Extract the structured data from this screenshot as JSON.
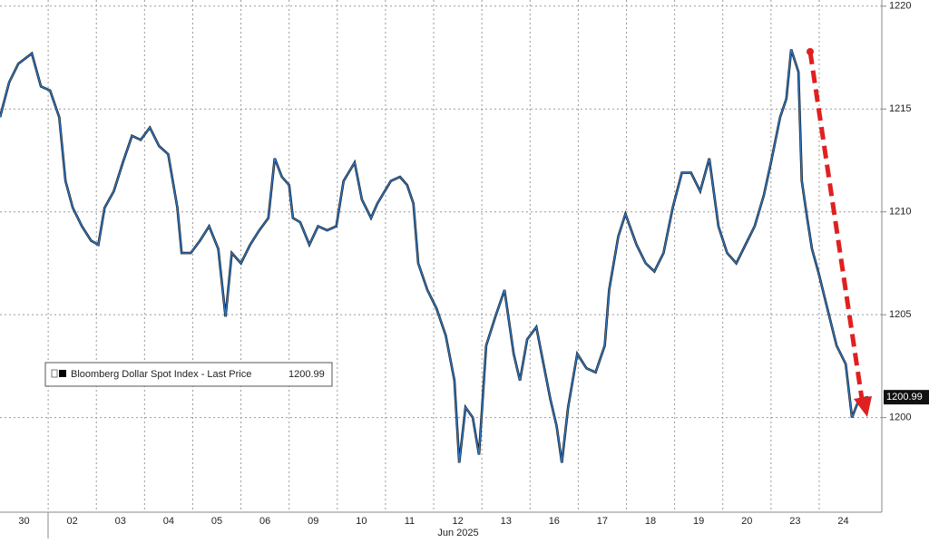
{
  "chart_data": {
    "type": "line",
    "xlabel": "Jun 2025",
    "x": [
      0,
      0.19,
      0.38,
      0.66,
      0.85,
      1.04,
      1.23,
      1.36,
      1.51,
      1.7,
      1.89,
      2.04,
      2.17,
      2.36,
      2.55,
      2.74,
      2.92,
      3.11,
      3.3,
      3.49,
      3.68,
      3.77,
      3.96,
      4.15,
      4.34,
      4.53,
      4.68,
      4.81,
      5.0,
      5.19,
      5.38,
      5.57,
      5.7,
      5.85,
      6.0,
      6.08,
      6.23,
      6.42,
      6.6,
      6.79,
      6.98,
      7.13,
      7.36,
      7.51,
      7.7,
      7.83,
      8.11,
      8.3,
      8.45,
      8.58,
      8.68,
      8.87,
      9.06,
      9.25,
      9.43,
      9.53,
      9.66,
      9.81,
      9.94,
      10.09,
      10.28,
      10.47,
      10.66,
      10.79,
      10.94,
      11.13,
      11.28,
      11.42,
      11.55,
      11.66,
      11.79,
      11.98,
      12.17,
      12.36,
      12.55,
      12.64,
      12.83,
      12.98,
      13.21,
      13.4,
      13.58,
      13.77,
      13.96,
      14.15,
      14.34,
      14.53,
      14.72,
      14.91,
      15.09,
      15.28,
      15.47,
      15.66,
      15.85,
      16.0,
      16.19,
      16.32,
      16.42,
      16.57,
      16.64,
      16.75,
      16.85,
      16.98,
      17.17,
      17.36,
      17.55,
      17.68,
      17.83,
      18.02
    ],
    "series": [
      {
        "name": "Bloomberg Dollar Spot Index - Last Price",
        "color": "#2f78c4",
        "values": [
          1214.6,
          1216.3,
          1217.2,
          1217.7,
          1216.1,
          1215.9,
          1214.6,
          1211.5,
          1210.2,
          1209.3,
          1208.6,
          1208.4,
          1210.2,
          1211.0,
          1212.4,
          1213.7,
          1213.5,
          1214.1,
          1213.2,
          1212.8,
          1210.2,
          1208.0,
          1208.0,
          1208.6,
          1209.3,
          1208.2,
          1204.9,
          1208.0,
          1207.5,
          1208.4,
          1209.1,
          1209.7,
          1212.6,
          1211.7,
          1211.3,
          1209.7,
          1209.5,
          1208.4,
          1209.3,
          1209.1,
          1209.3,
          1211.5,
          1212.4,
          1210.6,
          1209.7,
          1210.4,
          1211.5,
          1211.7,
          1211.3,
          1210.4,
          1207.5,
          1206.2,
          1205.3,
          1204.0,
          1201.8,
          1197.8,
          1200.5,
          1200.0,
          1198.2,
          1203.5,
          1204.9,
          1206.2,
          1203.1,
          1201.8,
          1203.8,
          1204.4,
          1202.6,
          1200.9,
          1199.6,
          1197.8,
          1200.5,
          1203.1,
          1202.4,
          1202.2,
          1203.5,
          1206.2,
          1208.8,
          1209.9,
          1208.4,
          1207.5,
          1207.1,
          1208.0,
          1210.2,
          1211.9,
          1211.9,
          1211.0,
          1212.6,
          1209.3,
          1208.0,
          1207.5,
          1208.4,
          1209.3,
          1210.8,
          1212.4,
          1214.6,
          1215.5,
          1217.9,
          1216.8,
          1211.5,
          1209.7,
          1208.2,
          1207.1,
          1205.3,
          1203.5,
          1202.6,
          1200.0,
          1200.9,
          1200.99
        ]
      }
    ],
    "xlim": [
      0,
      18.3
    ],
    "xticks": [
      {
        "value": 0.5,
        "label": "30"
      },
      {
        "value": 1.5,
        "label": "02"
      },
      {
        "value": 2.5,
        "label": "03"
      },
      {
        "value": 3.5,
        "label": "04"
      },
      {
        "value": 4.5,
        "label": "05"
      },
      {
        "value": 5.5,
        "label": "06"
      },
      {
        "value": 6.5,
        "label": "09"
      },
      {
        "value": 7.5,
        "label": "10"
      },
      {
        "value": 8.5,
        "label": "11"
      },
      {
        "value": 9.5,
        "label": "12"
      },
      {
        "value": 10.5,
        "label": "13"
      },
      {
        "value": 11.5,
        "label": "16"
      },
      {
        "value": 12.5,
        "label": "17"
      },
      {
        "value": 13.5,
        "label": "18"
      },
      {
        "value": 14.5,
        "label": "19"
      },
      {
        "value": 15.5,
        "label": "20"
      },
      {
        "value": 16.5,
        "label": "23"
      },
      {
        "value": 17.5,
        "label": "24"
      }
    ],
    "ylim": [
      1195.4,
      1220.3
    ],
    "yticks": [
      1200,
      1205,
      1210,
      1215,
      1220
    ],
    "grid": true
  }
}
